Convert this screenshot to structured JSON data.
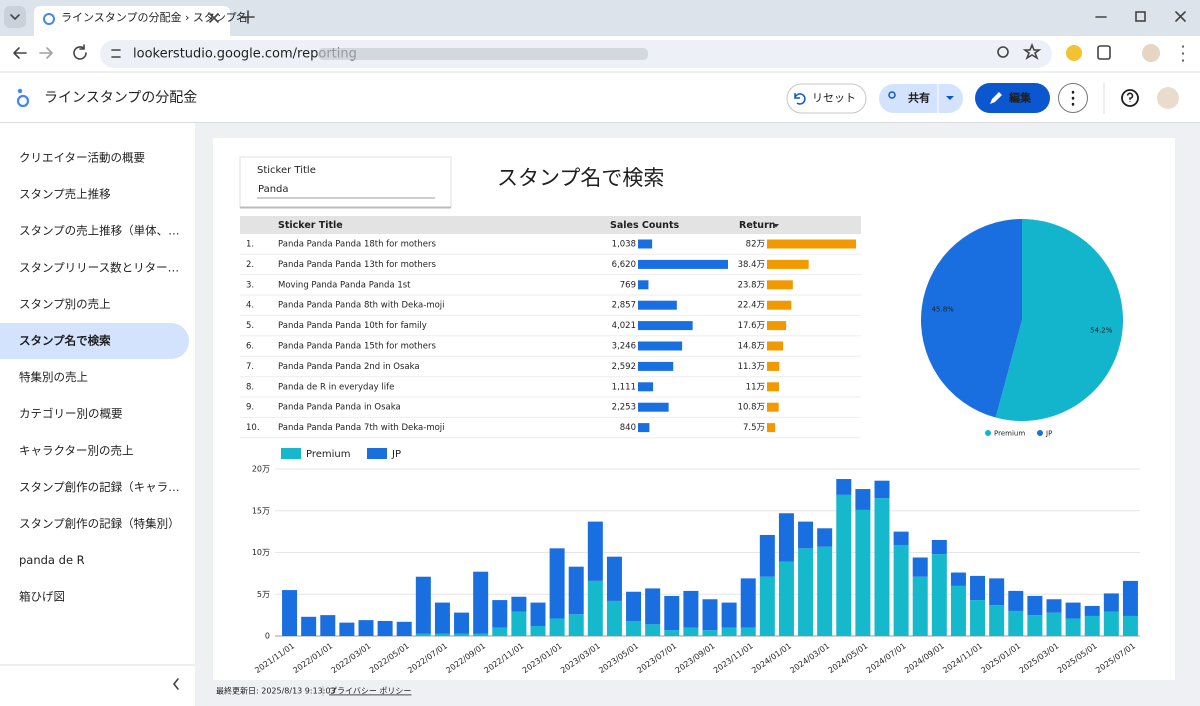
{
  "browser": {
    "tab_title": "ラインスタンプの分配金 › スタンプ名",
    "url": "lookerstudio.google.com/reporting"
  },
  "header": {
    "app_title": "ラインスタンプの分配金",
    "reset": "リセット",
    "share": "共有",
    "edit": "編集"
  },
  "sidebar": {
    "active": 5,
    "items": [
      "クリエイター活動の概要",
      "スタンプ売上推移",
      "スタンプの売上推移（単体、…",
      "スタンプリリース数とリター…",
      "スタンプ別の売上",
      "スタンプ名で検索",
      "特集別の売上",
      "カテゴリー別の概要",
      "キャラクター別の売上",
      "スタンプ創作の記録（キャラ…",
      "スタンプ創作の記録（特集別）",
      "panda de R",
      "箱ひげ図"
    ]
  },
  "report": {
    "heading": "スタンプ名で検索",
    "filter": {
      "label": "Sticker Title",
      "value": "Panda"
    }
  },
  "table": {
    "columns": [
      "Sticker Title",
      "Sales Counts",
      "Return"
    ],
    "rows": [
      {
        "rank": "1.",
        "title": "Panda Panda Panda 18th for mothers",
        "sales_counts": {
          "value": 1038,
          "label": "1,038"
        },
        "return": {
          "value": 820000,
          "label": "82万"
        }
      },
      {
        "rank": "2.",
        "title": "Panda Panda Panda 13th for mothers",
        "sales_counts": {
          "value": 6620,
          "label": "6,620"
        },
        "return": {
          "value": 384000,
          "label": "38.4万"
        }
      },
      {
        "rank": "3.",
        "title": "Moving Panda Panda Panda 1st",
        "sales_counts": {
          "value": 769,
          "label": "769"
        },
        "return": {
          "value": 238000,
          "label": "23.8万"
        }
      },
      {
        "rank": "4.",
        "title": "Panda Panda Panda 8th with Deka-moji",
        "sales_counts": {
          "value": 2857,
          "label": "2,857"
        },
        "return": {
          "value": 224000,
          "label": "22.4万"
        }
      },
      {
        "rank": "5.",
        "title": "Panda Panda Panda 10th for family",
        "sales_counts": {
          "value": 4021,
          "label": "4,021"
        },
        "return": {
          "value": 176000,
          "label": "17.6万"
        }
      },
      {
        "rank": "6.",
        "title": "Panda Panda Panda 15th for mothers",
        "sales_counts": {
          "value": 3246,
          "label": "3,246"
        },
        "return": {
          "value": 148000,
          "label": "14.8万"
        }
      },
      {
        "rank": "7.",
        "title": "Panda Panda Panda 2nd in Osaka",
        "sales_counts": {
          "value": 2592,
          "label": "2,592"
        },
        "return": {
          "value": 113000,
          "label": "11.3万"
        }
      },
      {
        "rank": "8.",
        "title": "Panda de R in everyday life",
        "sales_counts": {
          "value": 1111,
          "label": "1,111"
        },
        "return": {
          "value": 110000,
          "label": "11万"
        }
      },
      {
        "rank": "9.",
        "title": "Panda Panda Panda in Osaka",
        "sales_counts": {
          "value": 2253,
          "label": "2,253"
        },
        "return": {
          "value": 108000,
          "label": "10.8万"
        }
      },
      {
        "rank": "10.",
        "title": "Panda Panda Panda 7th with Deka-moji",
        "sales_counts": {
          "value": 840,
          "label": "840"
        },
        "return": {
          "value": 75000,
          "label": "7.5万"
        }
      }
    ]
  },
  "chart_data": [
    {
      "type": "pie",
      "categories": [
        "Premium",
        "JP"
      ],
      "values": [
        54.2,
        45.8
      ],
      "value_labels": [
        "54.2%",
        "45.8%"
      ],
      "colors": [
        "#12b5cb",
        "#1a6fe0"
      ]
    },
    {
      "type": "bar",
      "stacked": true,
      "grid": true,
      "categories": [
        "2021/11/01",
        null,
        "2022/01/01",
        null,
        "2022/03/01",
        null,
        "2022/05/01",
        null,
        "2022/07/01",
        null,
        "2022/09/01",
        null,
        "2022/11/01",
        null,
        "2023/01/01",
        null,
        "2023/03/01",
        null,
        "2023/05/01",
        null,
        "2023/07/01",
        null,
        "2023/09/01",
        null,
        "2023/11/01",
        null,
        "2024/01/01",
        null,
        "2024/03/01",
        null,
        "2024/05/01",
        null,
        "2024/07/01",
        null,
        "2024/09/01",
        null,
        "2024/11/01",
        null,
        "2025/01/01",
        null,
        "2025/03/01",
        null,
        "2025/05/01",
        null,
        "2025/07/01"
      ],
      "series": [
        {
          "name": "Premium",
          "color": "#16b8cc",
          "values": [
            0,
            0,
            0,
            0,
            0,
            0,
            0,
            3000,
            3000,
            3000,
            3000,
            10000,
            29000,
            12000,
            21000,
            26000,
            66000,
            42000,
            18000,
            14000,
            7000,
            10000,
            7000,
            10000,
            10000,
            71000,
            89000,
            105000,
            107000,
            169000,
            151000,
            165000,
            109000,
            71000,
            98000,
            60000,
            43000,
            37000,
            30000,
            25000,
            28000,
            21000,
            24000,
            29000,
            24000
          ]
        },
        {
          "name": "JP",
          "color": "#1a6fe0",
          "values": [
            55000,
            23000,
            25000,
            16000,
            19000,
            18000,
            17000,
            68000,
            37000,
            25000,
            74000,
            33000,
            18000,
            28000,
            84000,
            57000,
            71000,
            53000,
            35000,
            43000,
            41000,
            44000,
            37000,
            30000,
            59000,
            50000,
            58000,
            32000,
            22000,
            19000,
            25000,
            21000,
            16000,
            23000,
            17000,
            16000,
            29000,
            32000,
            24000,
            23000,
            16000,
            19000,
            12000,
            22000,
            42000
          ]
        }
      ],
      "ylim": [
        0,
        200000
      ],
      "yticks": [
        0,
        {
          "value": 50000,
          "label": "5万"
        },
        {
          "value": 100000,
          "label": "10万"
        },
        {
          "value": 150000,
          "label": "15万"
        },
        {
          "value": 200000,
          "label": "20万"
        }
      ]
    }
  ],
  "footer": {
    "updated": "最終更新日: 2025/8/13 9:13:03",
    "privacy": "プライバシー ポリシー"
  }
}
